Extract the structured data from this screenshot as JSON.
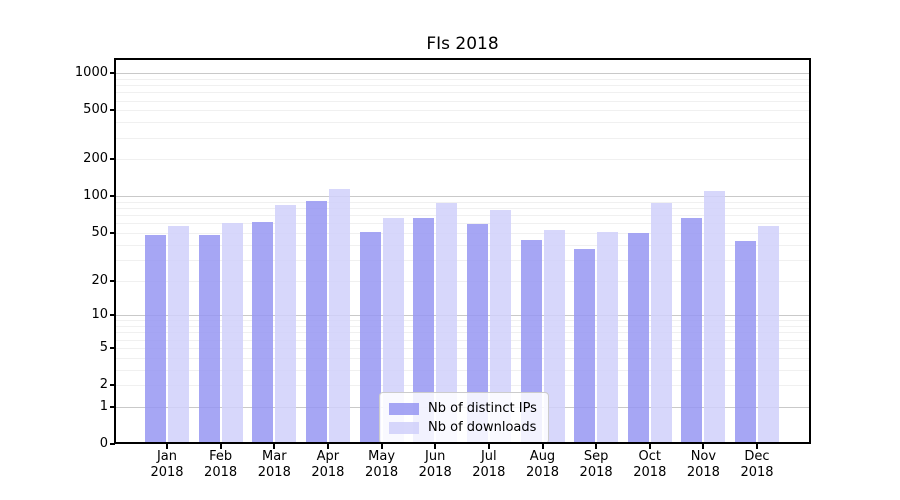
{
  "chart_data": {
    "type": "bar",
    "title": "FIs 2018",
    "categories": [
      "Jan 2018",
      "Feb 2018",
      "Mar 2018",
      "Apr 2018",
      "May 2018",
      "Jun 2018",
      "Jul 2018",
      "Aug 2018",
      "Sep 2018",
      "Oct 2018",
      "Nov 2018",
      "Dec 2018"
    ],
    "series": [
      {
        "name": "Nb of distinct IPs",
        "color": "rgba(150,150,242,0.85)",
        "values": [
          48,
          48,
          62,
          92,
          51,
          66,
          59,
          44,
          37,
          50,
          67,
          43
        ]
      },
      {
        "name": "Nb of downloads",
        "color": "rgba(208,208,250,0.85)",
        "values": [
          57,
          61,
          85,
          115,
          67,
          88,
          77,
          53,
          51,
          88,
          110,
          57
        ]
      }
    ],
    "xlabel": "",
    "ylabel": "",
    "yscale": "log1p",
    "y_ticks": [
      0,
      1,
      2,
      5,
      10,
      20,
      50,
      100,
      200,
      500,
      1000
    ],
    "ylim": [
      0,
      1300
    ],
    "grid": "on",
    "legend_position": "lower-center-inside"
  },
  "colors": {
    "major_grid": "#c9c9c9",
    "minor_grid": "#f0f0f0",
    "axis": "#000000",
    "background": "#ffffff"
  }
}
